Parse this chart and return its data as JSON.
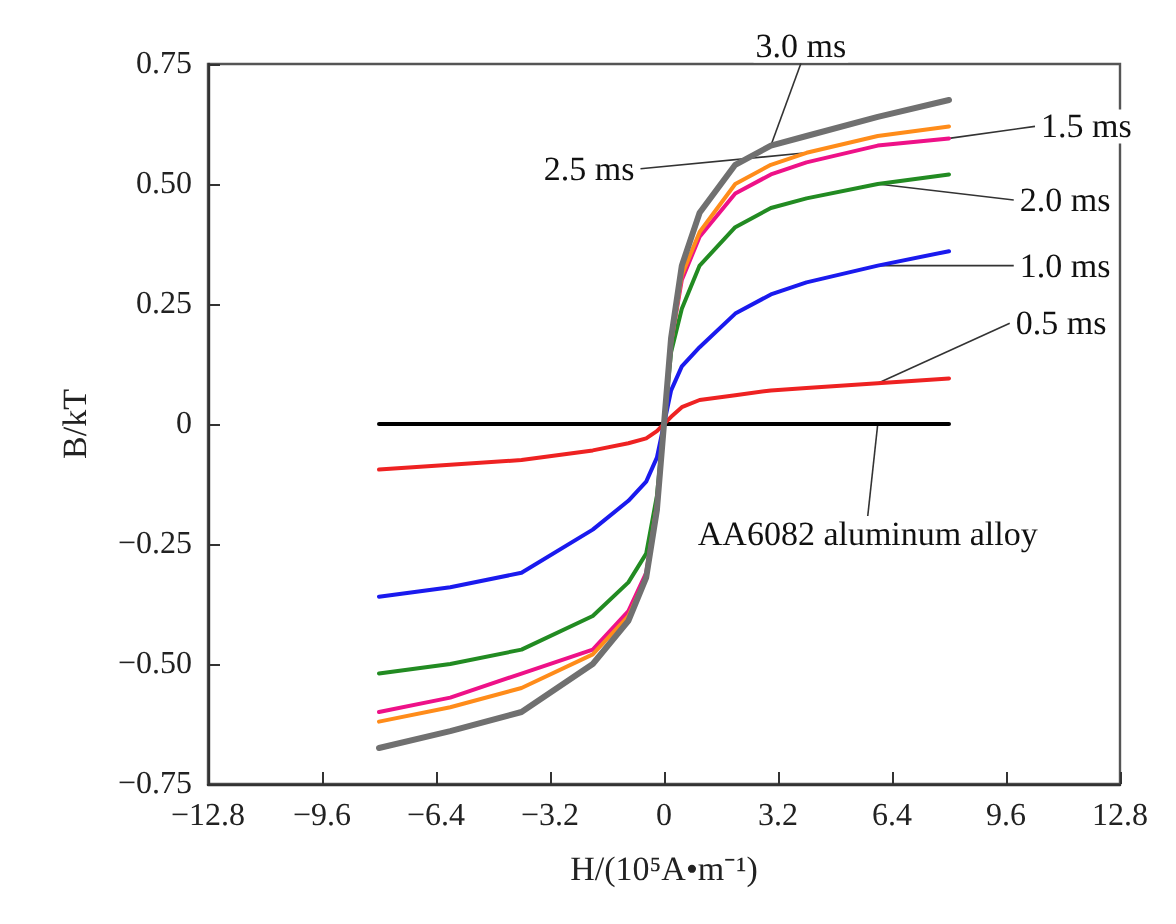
{
  "chart_data": {
    "type": "line",
    "xlabel": "H/(10⁵A•m⁻¹)",
    "ylabel": "B/kT",
    "x": [
      -8,
      -6,
      -4,
      -2,
      -1,
      -0.5,
      -0.2,
      0,
      0.2,
      0.5,
      1,
      2,
      3,
      4,
      6,
      8
    ],
    "series": [
      {
        "name": "AA6082 aluminum alloy",
        "color": "#000000",
        "values": [
          0,
          0,
          0,
          0,
          0,
          0,
          0,
          0,
          0,
          0,
          0,
          0,
          0,
          0,
          0,
          0
        ]
      },
      {
        "name": "0.5 ms",
        "color": "#ee2222",
        "values": [
          -0.095,
          -0.085,
          -0.075,
          -0.055,
          -0.04,
          -0.03,
          -0.015,
          0,
          0.015,
          0.035,
          0.05,
          0.06,
          0.07,
          0.075,
          0.085,
          0.095
        ]
      },
      {
        "name": "1.0 ms",
        "color": "#1a1aee",
        "values": [
          -0.36,
          -0.34,
          -0.31,
          -0.22,
          -0.16,
          -0.12,
          -0.07,
          0,
          0.07,
          0.12,
          0.16,
          0.23,
          0.27,
          0.295,
          0.33,
          0.36
        ]
      },
      {
        "name": "2.0 ms",
        "color": "#228b22",
        "values": [
          -0.52,
          -0.5,
          -0.47,
          -0.4,
          -0.33,
          -0.27,
          -0.15,
          0,
          0.15,
          0.24,
          0.33,
          0.41,
          0.45,
          0.47,
          0.5,
          0.52
        ]
      },
      {
        "name": "1.5 ms",
        "color": "#ee1188",
        "values": [
          -0.6,
          -0.57,
          -0.52,
          -0.47,
          -0.39,
          -0.31,
          -0.17,
          0,
          0.17,
          0.3,
          0.39,
          0.48,
          0.52,
          0.545,
          0.58,
          0.595
        ]
      },
      {
        "name": "2.5 ms",
        "color": "#ff8c1a",
        "values": [
          -0.62,
          -0.59,
          -0.55,
          -0.48,
          -0.4,
          -0.32,
          -0.17,
          0,
          0.17,
          0.31,
          0.4,
          0.5,
          0.54,
          0.565,
          0.6,
          0.62
        ]
      },
      {
        "name": "3.0 ms",
        "color": "#707070",
        "values": [
          -0.675,
          -0.64,
          -0.6,
          -0.5,
          -0.41,
          -0.32,
          -0.18,
          0,
          0.18,
          0.33,
          0.44,
          0.54,
          0.58,
          0.6,
          0.64,
          0.675
        ]
      }
    ],
    "xlim": [
      -12.8,
      12.8
    ],
    "xticks": [
      {
        "value": -12.8,
        "label": "−12.8"
      },
      {
        "value": -9.6,
        "label": "−9.6"
      },
      {
        "value": -6.4,
        "label": "−6.4"
      },
      {
        "value": -3.2,
        "label": "−3.2"
      },
      0,
      3.2,
      6.4,
      9.6,
      12.8
    ],
    "ylim": [
      -0.75,
      0.75
    ],
    "yticks": [
      {
        "value": -0.75,
        "label": "−0.75"
      },
      {
        "value": -0.5,
        "label": "−0.50"
      },
      {
        "value": -0.25,
        "label": "−0.25"
      },
      0,
      0.25,
      {
        "value": 0.5,
        "label": "0.50"
      },
      0.75
    ],
    "grid": false,
    "legend": false,
    "marker": "none",
    "line_style": "solid"
  }
}
